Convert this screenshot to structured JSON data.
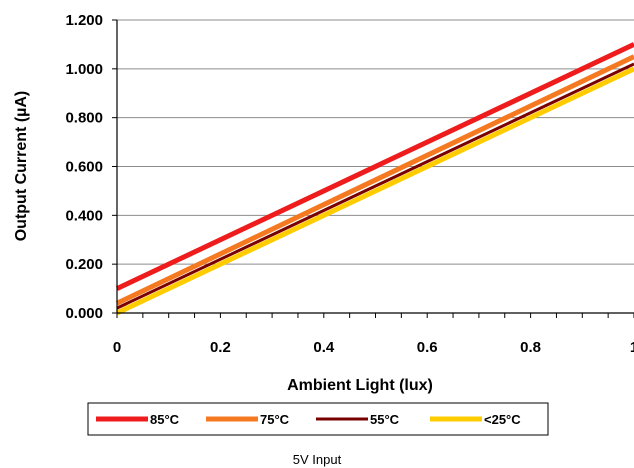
{
  "chart_data": {
    "type": "line",
    "title": "",
    "xlabel": "Ambient Light (lux)",
    "ylabel": "Output Current (µA)",
    "xlim": [
      0,
      1
    ],
    "ylim": [
      0,
      1.2
    ],
    "x_ticks": [
      "0",
      "0.2",
      "0.4",
      "0.6",
      "0.8",
      "1"
    ],
    "y_ticks": [
      "0.000",
      "0.200",
      "0.400",
      "0.600",
      "0.800",
      "1.000",
      "1.200"
    ],
    "grid": "horizontal",
    "legend_position": "bottom",
    "x": [
      0,
      1
    ],
    "series": [
      {
        "name": "85°C",
        "color": "#ee1c1c",
        "values": [
          0.1,
          1.1
        ]
      },
      {
        "name": "75°C",
        "color": "#f47920",
        "values": [
          0.04,
          1.05
        ]
      },
      {
        "name": "55°C",
        "color": "#7a0000",
        "values": [
          0.02,
          1.02
        ]
      },
      {
        "name": "<25°C",
        "color": "#ffcc00",
        "values": [
          0.0,
          1.0
        ]
      }
    ],
    "caption": "5V Input"
  }
}
